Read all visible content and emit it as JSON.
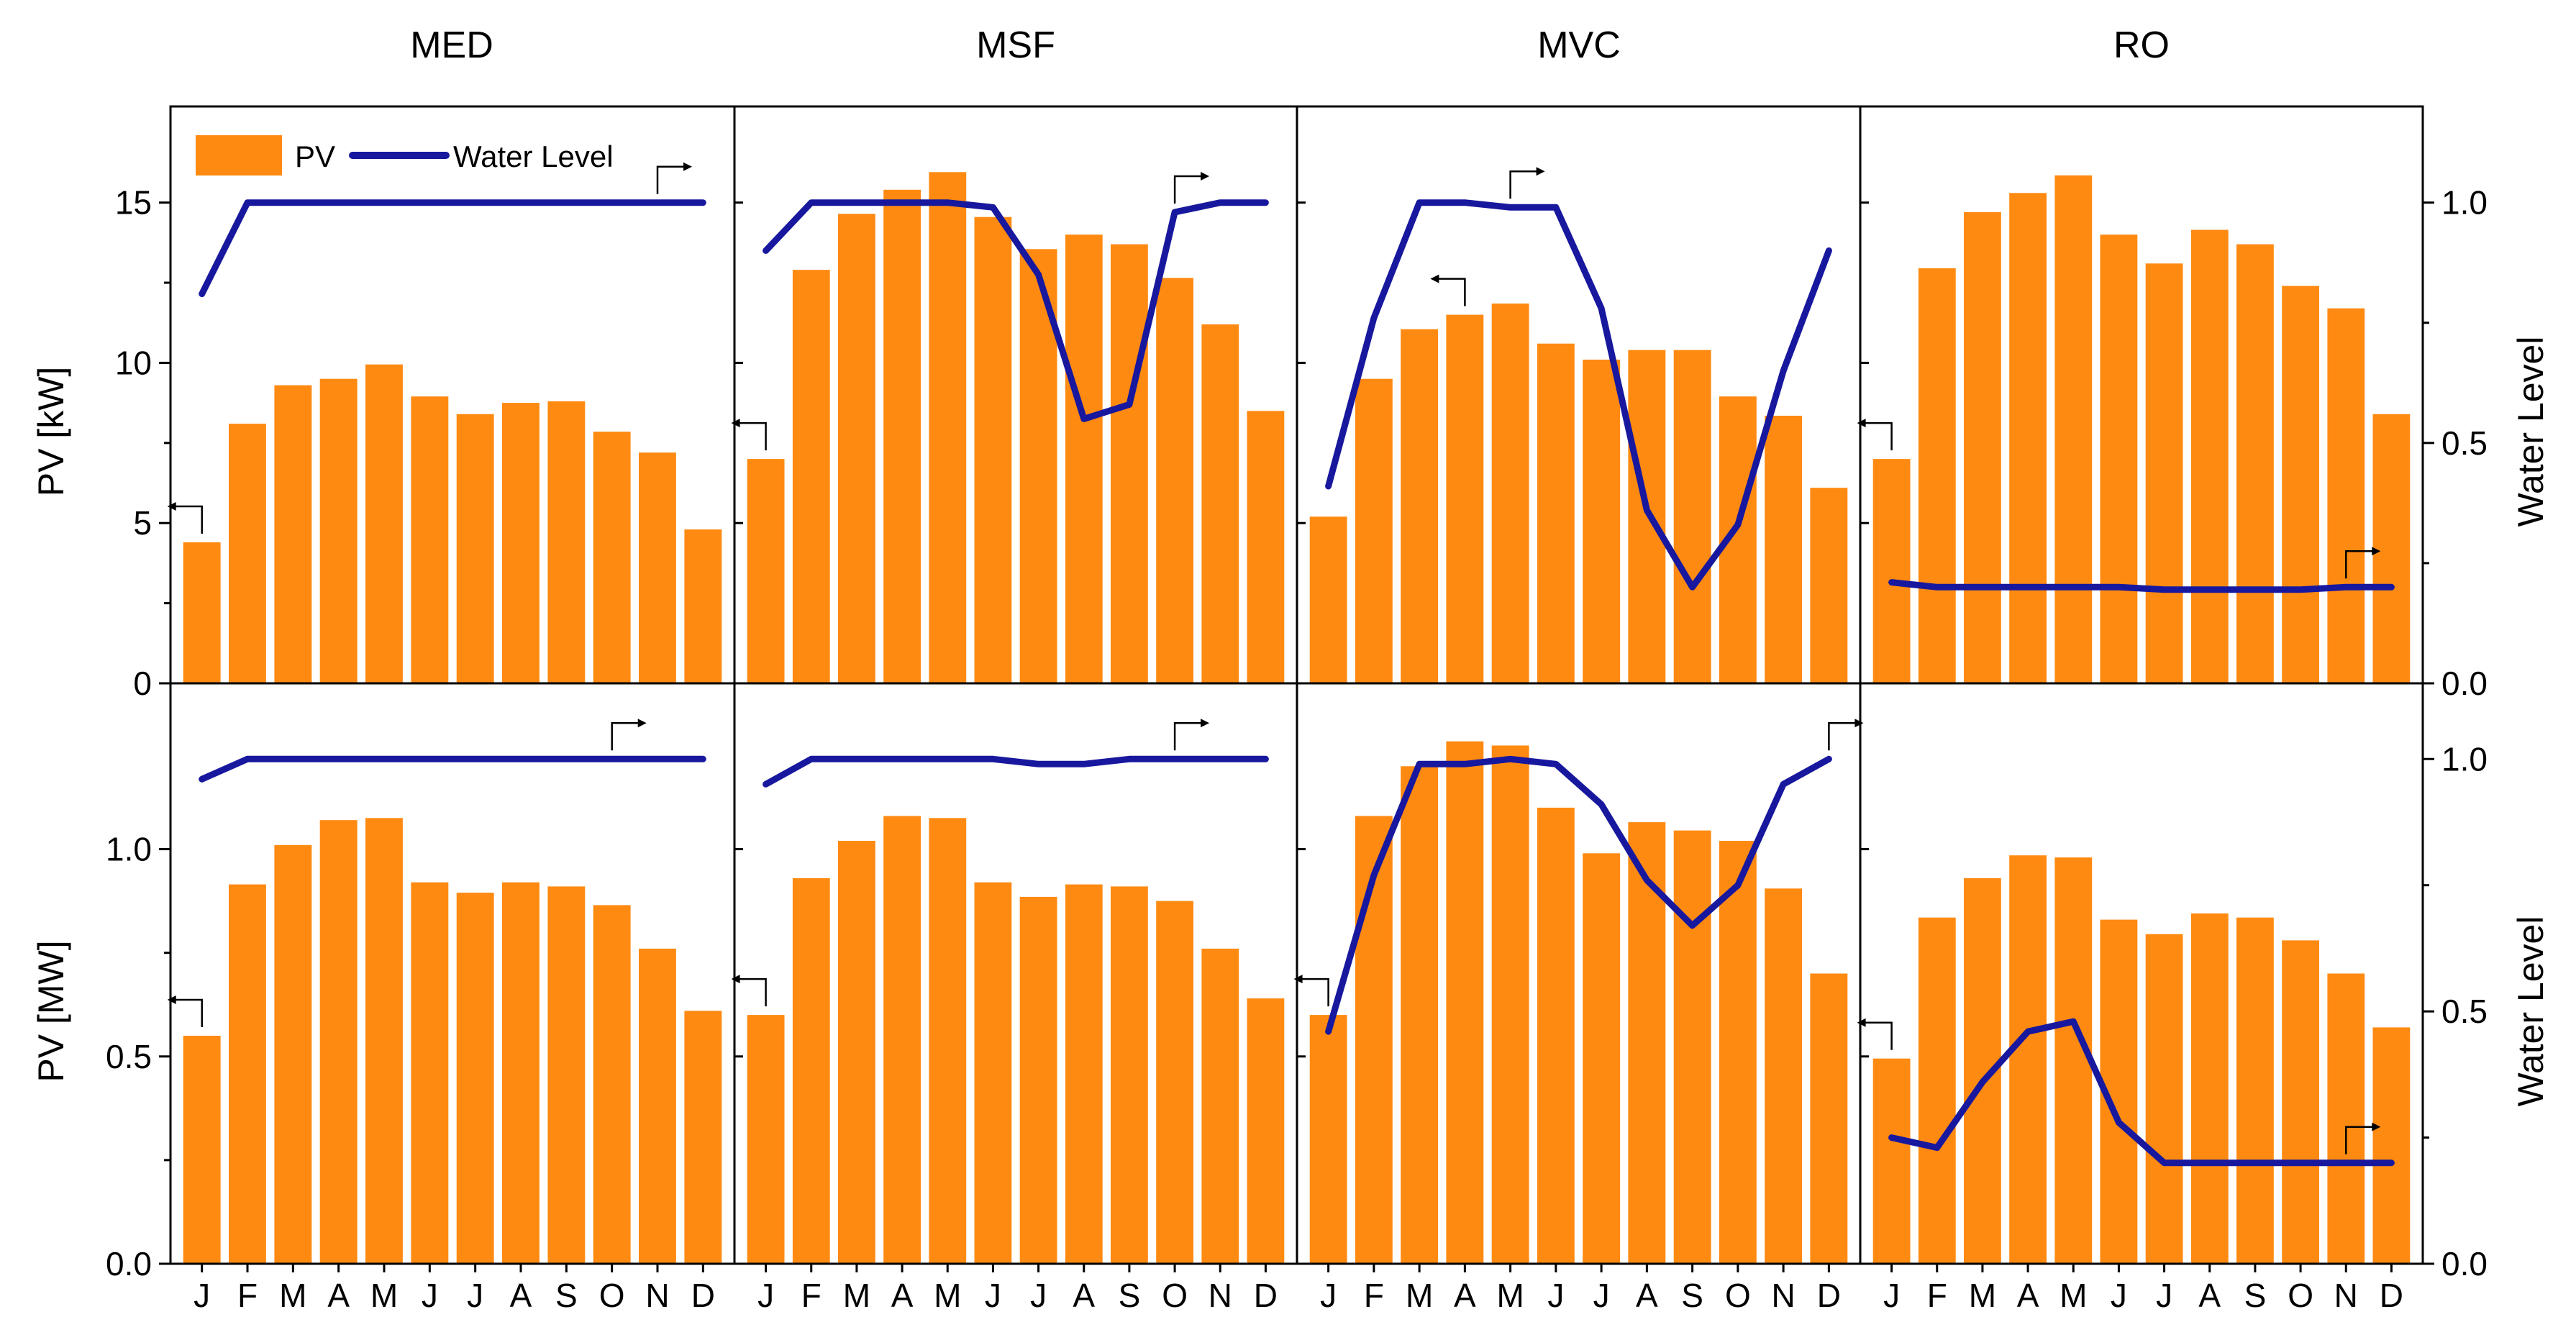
{
  "chart_data": {
    "type": "bar+line",
    "layout": "2 rows x 4 columns, shared month axis",
    "months": [
      "J",
      "F",
      "M",
      "A",
      "M",
      "J",
      "J",
      "A",
      "S",
      "O",
      "N",
      "D"
    ],
    "column_titles": [
      "MED",
      "MSF",
      "MVC",
      "RO"
    ],
    "legend": {
      "bar": "PV",
      "line": "Water Level"
    },
    "colors": {
      "bar": "#ff8a12",
      "line": "#18189e"
    },
    "rows": [
      {
        "ylabel_left": "PV [kW]",
        "ylabel_right": "Water Level",
        "ylim_left": [
          0,
          18
        ],
        "yticks_left": [
          0,
          5,
          10,
          15
        ],
        "ytick_labels_left": [
          "0",
          "5",
          "10",
          "15"
        ],
        "ylim_right": [
          0,
          1.2
        ],
        "yticks_right": [
          0,
          0.5,
          1.0
        ],
        "ytick_labels_right": [
          "0.0",
          "0.5",
          "1.0"
        ],
        "panels": [
          {
            "name": "MED",
            "pv": [
              4.4,
              8.1,
              9.3,
              9.5,
              9.95,
              8.95,
              8.4,
              8.75,
              8.8,
              7.85,
              7.2,
              4.8
            ],
            "water_level": [
              0.81,
              1.0,
              1.0,
              1.0,
              1.0,
              1.0,
              1.0,
              1.0,
              1.0,
              1.0,
              1.0,
              1.0
            ],
            "left_arrow_month": 1,
            "right_arrow_month": 11
          },
          {
            "name": "MSF",
            "pv": [
              7.0,
              12.9,
              14.65,
              15.4,
              15.95,
              14.55,
              13.55,
              14.0,
              13.7,
              12.65,
              11.2,
              8.5
            ],
            "water_level": [
              0.9,
              1.0,
              1.0,
              1.0,
              1.0,
              0.99,
              0.85,
              0.55,
              0.58,
              0.98,
              1.0,
              1.0
            ],
            "left_arrow_month": 1,
            "right_arrow_month": 10
          },
          {
            "name": "MVC",
            "pv": [
              5.2,
              9.5,
              11.05,
              11.5,
              11.85,
              10.6,
              10.1,
              10.4,
              10.4,
              8.95,
              8.35,
              6.1
            ],
            "water_level": [
              0.41,
              0.76,
              1.0,
              1.0,
              0.99,
              0.99,
              0.78,
              0.36,
              0.2,
              0.33,
              0.65,
              0.9
            ],
            "left_arrow_month": 4,
            "right_arrow_month": 5
          },
          {
            "name": "RO",
            "pv": [
              7.0,
              12.95,
              14.7,
              15.3,
              15.85,
              14.0,
              13.1,
              14.15,
              13.7,
              12.4,
              11.7,
              8.4
            ],
            "water_level": [
              0.21,
              0.2,
              0.2,
              0.2,
              0.2,
              0.2,
              0.195,
              0.195,
              0.195,
              0.195,
              0.2,
              0.2
            ],
            "left_arrow_month": 1,
            "right_arrow_month": 11
          }
        ]
      },
      {
        "ylabel_left": "PV [MW]",
        "ylabel_right": "Water Level",
        "ylim_left": [
          0,
          1.4
        ],
        "yticks_left": [
          0,
          0.5,
          1.0
        ],
        "ytick_labels_left": [
          "0.0",
          "0.5",
          "1.0"
        ],
        "ylim_right": [
          0,
          1.15
        ],
        "yticks_right": [
          0,
          0.5,
          1.0
        ],
        "ytick_labels_right": [
          "0.0",
          "0.5",
          "1.0"
        ],
        "panels": [
          {
            "name": "MED",
            "pv": [
              0.55,
              0.915,
              1.01,
              1.07,
              1.075,
              0.92,
              0.895,
              0.92,
              0.91,
              0.865,
              0.76,
              0.61
            ],
            "water_level": [
              0.96,
              1.0,
              1.0,
              1.0,
              1.0,
              1.0,
              1.0,
              1.0,
              1.0,
              1.0,
              1.0,
              1.0
            ],
            "left_arrow_month": 1,
            "right_arrow_month": 10
          },
          {
            "name": "MSF",
            "pv": [
              0.6,
              0.93,
              1.02,
              1.08,
              1.075,
              0.92,
              0.885,
              0.915,
              0.91,
              0.875,
              0.76,
              0.64
            ],
            "water_level": [
              0.95,
              1.0,
              1.0,
              1.0,
              1.0,
              1.0,
              0.99,
              0.99,
              1.0,
              1.0,
              1.0,
              1.0
            ],
            "left_arrow_month": 1,
            "right_arrow_month": 10
          },
          {
            "name": "MVC",
            "pv": [
              0.6,
              1.08,
              1.2,
              1.26,
              1.25,
              1.1,
              0.99,
              1.065,
              1.045,
              1.02,
              0.905,
              0.7
            ],
            "water_level": [
              0.46,
              0.77,
              0.99,
              0.99,
              1.0,
              0.99,
              0.91,
              0.76,
              0.67,
              0.75,
              0.95,
              1.0
            ],
            "left_arrow_month": 1,
            "right_arrow_month": 12
          },
          {
            "name": "RO",
            "pv": [
              0.495,
              0.835,
              0.93,
              0.985,
              0.98,
              0.83,
              0.795,
              0.845,
              0.835,
              0.78,
              0.7,
              0.57
            ],
            "water_level": [
              0.25,
              0.23,
              0.36,
              0.46,
              0.48,
              0.28,
              0.2,
              0.2,
              0.2,
              0.2,
              0.2,
              0.2
            ],
            "left_arrow_month": 1,
            "right_arrow_month": 11
          }
        ]
      }
    ]
  }
}
